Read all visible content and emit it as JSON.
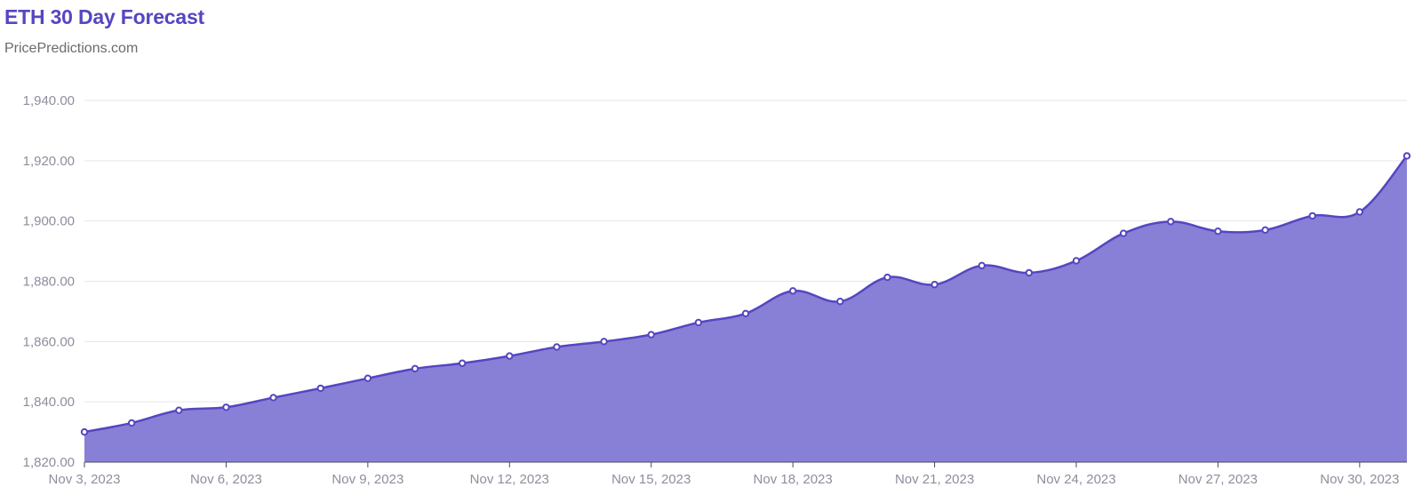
{
  "header": {
    "title": "ETH 30 Day Forecast",
    "subtitle": "PricePredictions.com"
  },
  "colors": {
    "title": "#5546c1",
    "line": "#5546c1",
    "area": "#8880d6",
    "grid": "#e6e6ec",
    "axis_text": "#8e8e9e"
  },
  "chart_data": {
    "type": "area",
    "title": "ETH 30 Day Forecast",
    "xlabel": "",
    "ylabel": "",
    "ylim": [
      1820,
      1940
    ],
    "grid": true,
    "yticks": [
      "1,820.00",
      "1,840.00",
      "1,860.00",
      "1,880.00",
      "1,900.00",
      "1,920.00",
      "1,940.00"
    ],
    "xticks": [
      "Nov 3, 2023",
      "Nov 6, 2023",
      "Nov 9, 2023",
      "Nov 12, 2023",
      "Nov 15, 2023",
      "Nov 18, 2023",
      "Nov 21, 2023",
      "Nov 24, 2023",
      "Nov 27, 2023",
      "Nov 30, 2023"
    ],
    "x": [
      "Nov 3, 2023",
      "Nov 4, 2023",
      "Nov 5, 2023",
      "Nov 6, 2023",
      "Nov 7, 2023",
      "Nov 8, 2023",
      "Nov 9, 2023",
      "Nov 10, 2023",
      "Nov 11, 2023",
      "Nov 12, 2023",
      "Nov 13, 2023",
      "Nov 14, 2023",
      "Nov 15, 2023",
      "Nov 16, 2023",
      "Nov 17, 2023",
      "Nov 18, 2023",
      "Nov 19, 2023",
      "Nov 20, 2023",
      "Nov 21, 2023",
      "Nov 22, 2023",
      "Nov 23, 2023",
      "Nov 24, 2023",
      "Nov 25, 2023",
      "Nov 26, 2023",
      "Nov 27, 2023",
      "Nov 28, 2023",
      "Nov 29, 2023",
      "Nov 30, 2023",
      "Dec 1, 2023"
    ],
    "values": [
      1830.0,
      1833.0,
      1837.2,
      1838.2,
      1841.4,
      1844.5,
      1847.8,
      1851.0,
      1852.8,
      1855.2,
      1858.2,
      1860.0,
      1862.3,
      1866.3,
      1869.3,
      1876.8,
      1873.3,
      1881.3,
      1878.9,
      1885.2,
      1882.8,
      1886.8,
      1895.9,
      1899.8,
      1896.6,
      1897.0,
      1901.7,
      1903.0,
      1921.6
    ]
  }
}
